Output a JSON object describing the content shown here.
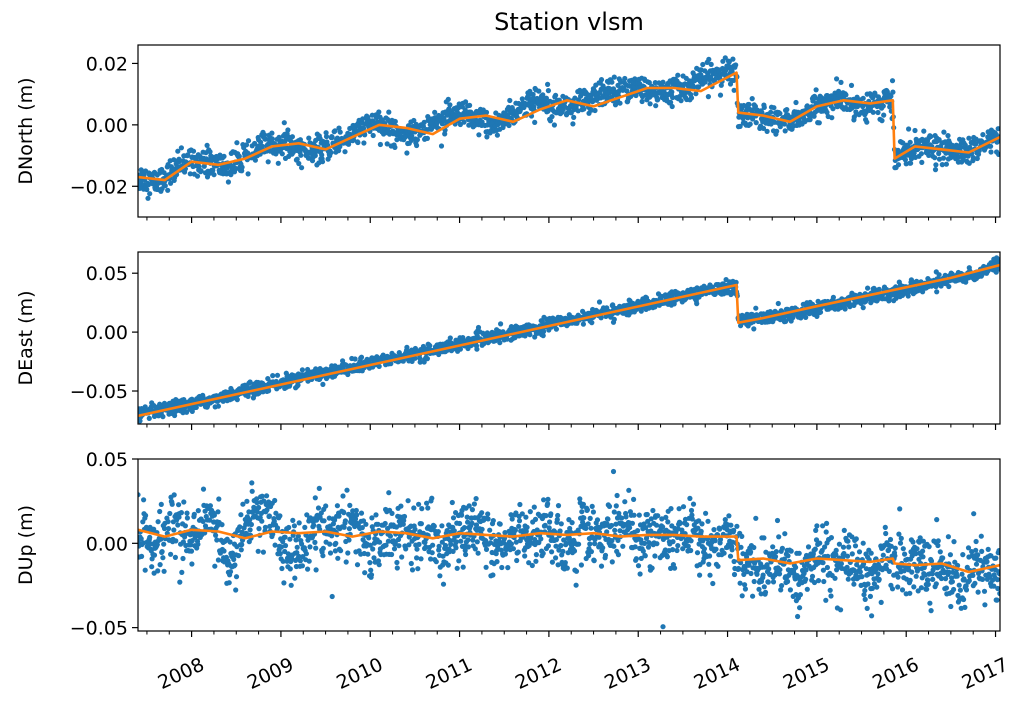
{
  "figure": {
    "title": "Station vlsm"
  },
  "chart_data": [
    {
      "type": "scatter",
      "panel": "north",
      "title": "Station vlsm",
      "xlabel": "",
      "ylabel": "DNorth (m)",
      "x_unit": "decimal year",
      "xlim": [
        2007.4,
        2017.05
      ],
      "ylim": [
        -0.03,
        0.026
      ],
      "yticks": [
        -0.02,
        0.0,
        0.02
      ],
      "ytick_labels": [
        "−0.02",
        "0.00",
        "0.02"
      ],
      "xticks": [
        2008,
        2009,
        2010,
        2011,
        2012,
        2013,
        2014,
        2015,
        2016,
        2017
      ],
      "xtick_labels": [],
      "grid": false,
      "legend": "none",
      "series": [
        {
          "kind": "scatter",
          "color": "#1f77b4",
          "x": [
            2007.4,
            2007.6,
            2007.8,
            2008.0,
            2008.2,
            2008.4,
            2008.6,
            2008.8,
            2009.0,
            2009.2,
            2009.4,
            2009.6,
            2009.8,
            2010.0,
            2010.2,
            2010.4,
            2010.6,
            2010.8,
            2011.0,
            2011.2,
            2011.4,
            2011.6,
            2011.8,
            2012.0,
            2012.2,
            2012.4,
            2012.6,
            2012.8,
            2013.0,
            2013.2,
            2013.4,
            2013.6,
            2013.8,
            2014.0,
            2014.1,
            2014.12,
            2014.3,
            2014.5,
            2014.7,
            2014.9,
            2015.1,
            2015.3,
            2015.5,
            2015.7,
            2015.85,
            2015.87,
            2016.0,
            2016.2,
            2016.4,
            2016.6,
            2016.8,
            2017.0
          ],
          "y": [
            -0.017,
            -0.019,
            -0.015,
            -0.011,
            -0.012,
            -0.014,
            -0.011,
            -0.007,
            -0.006,
            -0.008,
            -0.009,
            -0.006,
            -0.003,
            0.0,
            -0.001,
            -0.003,
            -0.001,
            0.002,
            0.003,
            0.001,
            0.0,
            0.004,
            0.007,
            0.008,
            0.006,
            0.007,
            0.01,
            0.012,
            0.012,
            0.01,
            0.011,
            0.013,
            0.016,
            0.017,
            0.017,
            0.004,
            0.003,
            0.002,
            0.001,
            0.004,
            0.007,
            0.008,
            0.006,
            0.007,
            0.008,
            -0.011,
            -0.008,
            -0.007,
            -0.008,
            -0.009,
            -0.008,
            -0.004
          ]
        },
        {
          "kind": "line",
          "color": "#ff7f0e",
          "x": [
            2007.4,
            2007.7,
            2008.0,
            2008.3,
            2008.6,
            2008.9,
            2009.2,
            2009.5,
            2009.8,
            2010.1,
            2010.4,
            2010.7,
            2011.0,
            2011.3,
            2011.6,
            2011.9,
            2012.2,
            2012.5,
            2012.8,
            2013.1,
            2013.4,
            2013.7,
            2014.1,
            2014.12,
            2014.4,
            2014.7,
            2015.0,
            2015.3,
            2015.6,
            2015.85,
            2015.87,
            2016.1,
            2016.4,
            2016.7,
            2017.05
          ],
          "y": [
            -0.017,
            -0.018,
            -0.012,
            -0.013,
            -0.011,
            -0.007,
            -0.006,
            -0.008,
            -0.004,
            0.0,
            -0.001,
            -0.003,
            0.002,
            0.003,
            0.001,
            0.005,
            0.008,
            0.006,
            0.009,
            0.012,
            0.012,
            0.011,
            0.017,
            0.004,
            0.003,
            0.001,
            0.006,
            0.008,
            0.007,
            0.008,
            -0.011,
            -0.007,
            -0.008,
            -0.009,
            -0.004
          ]
        }
      ]
    },
    {
      "type": "scatter",
      "panel": "east",
      "xlabel": "",
      "ylabel": "DEast (m)",
      "x_unit": "decimal year",
      "xlim": [
        2007.4,
        2017.05
      ],
      "ylim": [
        -0.078,
        0.068
      ],
      "yticks": [
        -0.05,
        0.0,
        0.05
      ],
      "ytick_labels": [
        "−0.05",
        "0.00",
        "0.05"
      ],
      "xticks": [
        2008,
        2009,
        2010,
        2011,
        2012,
        2013,
        2014,
        2015,
        2016,
        2017
      ],
      "xtick_labels": [],
      "grid": false,
      "legend": "none",
      "series": [
        {
          "kind": "scatter",
          "color": "#1f77b4",
          "x": [
            2007.4,
            2007.8,
            2008.2,
            2008.6,
            2009.0,
            2009.4,
            2009.8,
            2010.2,
            2010.6,
            2011.0,
            2011.4,
            2011.8,
            2012.2,
            2012.6,
            2013.0,
            2013.4,
            2013.8,
            2014.1,
            2014.12,
            2014.4,
            2014.8,
            2015.2,
            2015.6,
            2016.0,
            2016.4,
            2016.8,
            2017.0
          ],
          "y": [
            -0.07,
            -0.065,
            -0.058,
            -0.05,
            -0.043,
            -0.036,
            -0.03,
            -0.023,
            -0.017,
            -0.01,
            -0.004,
            0.003,
            0.01,
            0.016,
            0.022,
            0.029,
            0.035,
            0.04,
            0.01,
            0.012,
            0.016,
            0.024,
            0.03,
            0.036,
            0.043,
            0.05,
            0.057
          ]
        },
        {
          "kind": "line",
          "color": "#ff7f0e",
          "x": [
            2007.4,
            2014.1,
            2014.12,
            2014.4,
            2015.0,
            2015.5,
            2016.0,
            2016.5,
            2017.05
          ],
          "y": [
            -0.071,
            0.04,
            0.008,
            0.012,
            0.022,
            0.03,
            0.038,
            0.046,
            0.057
          ]
        }
      ]
    },
    {
      "type": "scatter",
      "panel": "up",
      "xlabel": "",
      "ylabel": "DUp (m)",
      "x_unit": "decimal year",
      "xlim": [
        2007.4,
        2017.05
      ],
      "ylim": [
        -0.052,
        0.05
      ],
      "yticks": [
        -0.05,
        0.0,
        0.05
      ],
      "ytick_labels": [
        "−0.05",
        "0.00",
        "0.05"
      ],
      "xticks": [
        2008,
        2009,
        2010,
        2011,
        2012,
        2013,
        2014,
        2015,
        2016,
        2017
      ],
      "xtick_labels": [
        "2008",
        "2009",
        "2010",
        "2011",
        "2012",
        "2013",
        "2014",
        "2015",
        "2016",
        "2017"
      ],
      "grid": false,
      "legend": "none",
      "series": [
        {
          "kind": "scatter",
          "color": "#1f77b4",
          "x": [
            2007.4,
            2007.6,
            2007.8,
            2008.0,
            2008.2,
            2008.4,
            2008.6,
            2008.8,
            2009.0,
            2009.2,
            2009.4,
            2009.6,
            2009.8,
            2010.0,
            2010.2,
            2010.4,
            2010.6,
            2010.8,
            2011.0,
            2011.2,
            2011.4,
            2011.6,
            2011.8,
            2012.0,
            2012.2,
            2012.4,
            2012.6,
            2012.8,
            2013.0,
            2013.2,
            2013.4,
            2013.6,
            2013.8,
            2014.0,
            2014.2,
            2014.4,
            2014.6,
            2014.8,
            2015.0,
            2015.2,
            2015.4,
            2015.6,
            2015.8,
            2016.0,
            2016.2,
            2016.4,
            2016.6,
            2016.8,
            2017.0
          ],
          "y": [
            0.008,
            -0.005,
            0.012,
            0.003,
            0.015,
            -0.008,
            0.006,
            0.018,
            0.002,
            -0.006,
            0.01,
            0.004,
            0.012,
            -0.004,
            0.008,
            0.002,
            0.01,
            -0.002,
            0.006,
            0.011,
            -0.005,
            0.007,
            0.003,
            0.009,
            -0.006,
            0.008,
            0.004,
            0.01,
            -0.003,
            0.006,
            0.002,
            0.008,
            -0.004,
            0.005,
            -0.01,
            -0.016,
            -0.008,
            -0.02,
            -0.006,
            -0.014,
            -0.009,
            -0.022,
            -0.004,
            -0.016,
            -0.01,
            -0.018,
            -0.024,
            -0.012,
            -0.015
          ]
        },
        {
          "kind": "line",
          "color": "#ff7f0e",
          "x": [
            2007.4,
            2007.7,
            2008.0,
            2008.3,
            2008.6,
            2008.9,
            2009.2,
            2009.5,
            2009.8,
            2010.1,
            2010.4,
            2010.7,
            2011.0,
            2011.3,
            2011.6,
            2011.9,
            2012.2,
            2012.5,
            2012.8,
            2013.1,
            2013.4,
            2013.7,
            2014.1,
            2014.12,
            2014.4,
            2014.7,
            2015.0,
            2015.3,
            2015.6,
            2015.85,
            2015.87,
            2016.1,
            2016.4,
            2016.7,
            2017.05
          ],
          "y": [
            0.008,
            0.004,
            0.008,
            0.007,
            0.003,
            0.007,
            0.006,
            0.007,
            0.004,
            0.007,
            0.006,
            0.003,
            0.006,
            0.005,
            0.004,
            0.006,
            0.005,
            0.006,
            0.004,
            0.005,
            0.005,
            0.004,
            0.004,
            -0.01,
            -0.009,
            -0.012,
            -0.009,
            -0.01,
            -0.011,
            -0.009,
            -0.012,
            -0.013,
            -0.012,
            -0.017,
            -0.013
          ]
        }
      ]
    }
  ]
}
